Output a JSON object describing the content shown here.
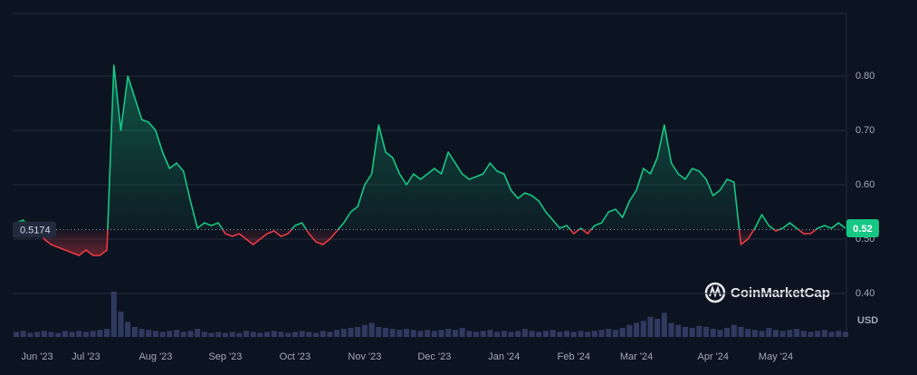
{
  "chart_data": {
    "type": "line",
    "baseline": 0.5174,
    "currency": "USD",
    "watermark": "CoinMarketCap",
    "up_color": "#16c784",
    "down_color": "#ea3943",
    "volume_color": "#3a4470",
    "categories": [
      null,
      null,
      null,
      "Jun '23",
      null,
      null,
      null,
      null,
      null,
      null,
      "Jul '23",
      null,
      null,
      null,
      null,
      null,
      null,
      null,
      null,
      null,
      "Aug '23",
      null,
      null,
      null,
      null,
      null,
      null,
      null,
      null,
      null,
      "Sep '23",
      null,
      null,
      null,
      null,
      null,
      null,
      null,
      null,
      null,
      "Oct '23",
      null,
      null,
      null,
      null,
      null,
      null,
      null,
      null,
      null,
      "Nov '23",
      null,
      null,
      null,
      null,
      null,
      null,
      null,
      null,
      null,
      "Dec '23",
      null,
      null,
      null,
      null,
      null,
      null,
      null,
      null,
      null,
      "Jan '24",
      null,
      null,
      null,
      null,
      null,
      null,
      null,
      null,
      null,
      "Feb '24",
      null,
      null,
      null,
      null,
      null,
      null,
      null,
      null,
      "Mar '24",
      null,
      null,
      null,
      null,
      null,
      null,
      null,
      null,
      null,
      null,
      "Apr '24",
      null,
      null,
      null,
      null,
      null,
      null,
      null,
      null,
      "May '24",
      null,
      null,
      null,
      null,
      null,
      null,
      null,
      null,
      null,
      null
    ],
    "values": [
      0.53,
      0.535,
      0.52,
      0.53,
      0.5,
      0.49,
      0.485,
      0.48,
      0.475,
      0.47,
      0.48,
      0.47,
      0.47,
      0.48,
      0.82,
      0.7,
      0.8,
      0.76,
      0.72,
      0.715,
      0.7,
      0.66,
      0.63,
      0.64,
      0.625,
      0.57,
      0.52,
      0.53,
      0.525,
      0.53,
      0.51,
      0.505,
      0.51,
      0.5,
      0.49,
      0.5,
      0.51,
      0.515,
      0.505,
      0.51,
      0.525,
      0.53,
      0.51,
      0.495,
      0.49,
      0.5,
      0.515,
      0.53,
      0.55,
      0.56,
      0.6,
      0.62,
      0.71,
      0.66,
      0.65,
      0.62,
      0.6,
      0.62,
      0.61,
      0.62,
      0.63,
      0.62,
      0.66,
      0.64,
      0.62,
      0.61,
      0.615,
      0.62,
      0.64,
      0.625,
      0.62,
      0.59,
      0.575,
      0.585,
      0.58,
      0.57,
      0.55,
      0.535,
      0.52,
      0.525,
      0.51,
      0.52,
      0.51,
      0.525,
      0.53,
      0.55,
      0.555,
      0.54,
      0.57,
      0.59,
      0.63,
      0.62,
      0.65,
      0.71,
      0.64,
      0.62,
      0.61,
      0.63,
      0.625,
      0.61,
      0.58,
      0.59,
      0.61,
      0.605,
      0.49,
      0.5,
      0.52,
      0.545,
      0.525,
      0.515,
      0.52,
      0.53,
      0.52,
      0.51,
      0.51,
      0.52,
      0.525,
      0.52,
      0.53,
      0.52
    ],
    "volume": [
      5,
      6,
      4,
      5,
      6,
      5,
      4,
      6,
      5,
      6,
      5,
      6,
      7,
      8,
      45,
      25,
      15,
      10,
      8,
      7,
      6,
      5,
      6,
      7,
      5,
      6,
      8,
      5,
      4,
      5,
      4,
      5,
      4,
      6,
      5,
      4,
      5,
      6,
      5,
      4,
      5,
      6,
      5,
      4,
      6,
      5,
      7,
      8,
      9,
      10,
      12,
      14,
      10,
      9,
      8,
      7,
      8,
      7,
      6,
      7,
      6,
      7,
      8,
      7,
      9,
      6,
      5,
      6,
      7,
      5,
      6,
      5,
      6,
      8,
      6,
      5,
      6,
      7,
      5,
      6,
      5,
      6,
      5,
      6,
      7,
      8,
      7,
      9,
      12,
      14,
      16,
      20,
      18,
      24,
      14,
      12,
      10,
      9,
      11,
      10,
      8,
      7,
      9,
      12,
      10,
      8,
      7,
      6,
      9,
      7,
      6,
      7,
      8,
      6,
      5,
      6,
      7,
      5,
      6,
      5
    ],
    "ylim": [
      0.32,
      0.915
    ],
    "yticks": [
      {
        "value": 0.4,
        "label": "0.40"
      },
      {
        "value": 0.5,
        "label": "0.50"
      },
      {
        "value": 0.6,
        "label": "0.60"
      },
      {
        "value": 0.7,
        "label": "0.70"
      },
      {
        "value": 0.8,
        "label": "0.80"
      }
    ],
    "grid": true
  }
}
